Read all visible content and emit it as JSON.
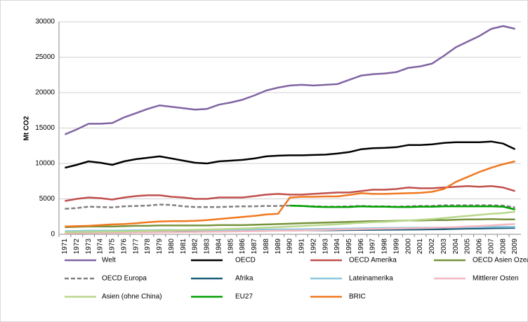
{
  "chart_data": {
    "type": "line",
    "ylabel": "Mt CO2",
    "categories": [
      "1971",
      "1972",
      "1973",
      "1974",
      "1975",
      "1976",
      "1977",
      "1978",
      "1979",
      "1980",
      "1981",
      "1982",
      "1983",
      "1984",
      "1985",
      "1986",
      "1987",
      "1988",
      "1989",
      "1990",
      "1991",
      "1992",
      "1993",
      "1994",
      "1995",
      "1996",
      "1997",
      "1998",
      "1999",
      "2000",
      "2001",
      "2002",
      "2003",
      "2004",
      "2005",
      "2006",
      "2007",
      "2008",
      "2009"
    ],
    "ylim": [
      0,
      30000
    ],
    "yticks": [
      0,
      5000,
      10000,
      15000,
      20000,
      25000,
      30000
    ],
    "grid": true,
    "series": [
      {
        "name": "Welt",
        "color": "#8064a2",
        "values": [
          14100,
          14800,
          15600,
          15600,
          15700,
          16500,
          17100,
          17700,
          18200,
          18000,
          17800,
          17600,
          17700,
          18300,
          18600,
          19000,
          19600,
          20300,
          20700,
          21000,
          21100,
          21000,
          21100,
          21200,
          21800,
          22400,
          22600,
          22700,
          22900,
          23500,
          23700,
          24100,
          25200,
          26400,
          27200,
          28000,
          29000,
          29400,
          29000
        ]
      },
      {
        "name": "OECD",
        "color": "#000000",
        "values": [
          9400,
          9800,
          10300,
          10100,
          9800,
          10300,
          10600,
          10800,
          11000,
          10700,
          10400,
          10100,
          10000,
          10300,
          10400,
          10500,
          10700,
          11000,
          11100,
          11150,
          11150,
          11200,
          11250,
          11400,
          11600,
          12000,
          12150,
          12200,
          12300,
          12600,
          12600,
          12700,
          12900,
          13000,
          13000,
          13000,
          13100,
          12800,
          12000
        ]
      },
      {
        "name": "OECD Amerika",
        "color": "#c0504d",
        "values": [
          4700,
          5000,
          5200,
          5100,
          4900,
          5200,
          5400,
          5500,
          5500,
          5300,
          5200,
          5000,
          5000,
          5200,
          5200,
          5200,
          5400,
          5600,
          5700,
          5600,
          5600,
          5700,
          5800,
          5900,
          5900,
          6100,
          6300,
          6300,
          6400,
          6600,
          6500,
          6500,
          6600,
          6700,
          6800,
          6700,
          6800,
          6600,
          6100
        ]
      },
      {
        "name": "OECD Asien Ozeanien",
        "color": "#77933c",
        "values": [
          1000,
          1050,
          1100,
          1100,
          1100,
          1150,
          1200,
          1200,
          1250,
          1250,
          1250,
          1250,
          1250,
          1300,
          1300,
          1300,
          1350,
          1400,
          1450,
          1500,
          1550,
          1600,
          1650,
          1700,
          1750,
          1800,
          1850,
          1850,
          1900,
          1950,
          1950,
          2000,
          2000,
          2050,
          2100,
          2100,
          2150,
          2100,
          2100
        ]
      },
      {
        "name": "OECD Europa",
        "color": "#808080",
        "dashed": true,
        "values": [
          3600,
          3700,
          3900,
          3850,
          3800,
          3950,
          4000,
          4050,
          4200,
          4150,
          3950,
          3850,
          3850,
          3850,
          3900,
          3950,
          3950,
          4000,
          4000,
          4050,
          4000,
          3950,
          3900,
          3900,
          3950,
          4000,
          3950,
          3950,
          3900,
          3950,
          4000,
          4000,
          4100,
          4100,
          4100,
          4100,
          4100,
          4050,
          3800
        ]
      },
      {
        "name": "Afrika",
        "color": "#1f5f7a",
        "values": [
          250,
          270,
          290,
          300,
          310,
          330,
          350,
          370,
          390,
          410,
          430,
          440,
          450,
          460,
          480,
          490,
          500,
          520,
          530,
          540,
          550,
          560,
          570,
          580,
          600,
          620,
          630,
          640,
          650,
          660,
          680,
          700,
          720,
          760,
          800,
          820,
          850,
          880,
          900
        ]
      },
      {
        "name": "Lateinamerika",
        "color": "#8cc8e0",
        "values": [
          450,
          470,
          500,
          510,
          520,
          540,
          560,
          580,
          600,
          610,
          600,
          590,
          590,
          610,
          620,
          640,
          660,
          680,
          690,
          700,
          720,
          740,
          760,
          790,
          820,
          850,
          880,
          900,
          910,
          930,
          940,
          950,
          960,
          980,
          1000,
          1020,
          1050,
          1070,
          1050
        ]
      },
      {
        "name": "Mittlerer Osten",
        "color": "#f4b8c0",
        "values": [
          150,
          170,
          190,
          200,
          200,
          230,
          260,
          280,
          300,
          310,
          320,
          340,
          360,
          380,
          400,
          420,
          450,
          480,
          500,
          530,
          550,
          590,
          620,
          660,
          700,
          730,
          760,
          790,
          810,
          850,
          880,
          920,
          960,
          1020,
          1100,
          1180,
          1270,
          1380,
          1450
        ]
      },
      {
        "name": "Asien (ohne China)",
        "color": "#b8d88c",
        "values": [
          300,
          320,
          350,
          370,
          400,
          430,
          460,
          500,
          540,
          570,
          600,
          640,
          680,
          720,
          770,
          820,
          880,
          950,
          1020,
          1100,
          1180,
          1260,
          1340,
          1420,
          1520,
          1620,
          1700,
          1750,
          1850,
          1950,
          2050,
          2150,
          2300,
          2450,
          2600,
          2750,
          2900,
          3000,
          3200
        ]
      },
      {
        "name": "EU27",
        "color": "#00a000",
        "values": [
          null,
          null,
          null,
          null,
          null,
          null,
          null,
          null,
          null,
          null,
          null,
          null,
          null,
          null,
          null,
          null,
          null,
          null,
          null,
          4050,
          4000,
          3900,
          3850,
          3850,
          3850,
          3950,
          3900,
          3900,
          3850,
          3850,
          3900,
          3900,
          3950,
          3950,
          3950,
          3950,
          3950,
          3900,
          3500
        ]
      },
      {
        "name": "BRIC",
        "color": "#f07820",
        "values": [
          1100,
          1150,
          1200,
          1300,
          1400,
          1450,
          1550,
          1700,
          1800,
          1850,
          1850,
          1900,
          2000,
          2150,
          2300,
          2450,
          2600,
          2800,
          2900,
          5200,
          5300,
          5300,
          5350,
          5350,
          5550,
          5800,
          5700,
          5700,
          5750,
          5800,
          5850,
          6000,
          6400,
          7400,
          8100,
          8800,
          9400,
          9900,
          10300
        ]
      }
    ]
  }
}
